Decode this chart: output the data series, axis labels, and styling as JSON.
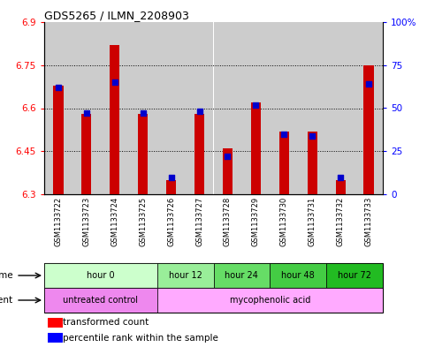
{
  "title": "GDS5265 / ILMN_2208903",
  "samples": [
    "GSM1133722",
    "GSM1133723",
    "GSM1133724",
    "GSM1133725",
    "GSM1133726",
    "GSM1133727",
    "GSM1133728",
    "GSM1133729",
    "GSM1133730",
    "GSM1133731",
    "GSM1133732",
    "GSM1133733"
  ],
  "transformed_count": [
    6.68,
    6.58,
    6.82,
    6.58,
    6.35,
    6.58,
    6.46,
    6.62,
    6.52,
    6.52,
    6.35,
    6.75
  ],
  "percentile_rank": [
    62,
    47,
    65,
    47,
    10,
    48,
    22,
    52,
    35,
    34,
    10,
    64
  ],
  "ylim_left": [
    6.3,
    6.9
  ],
  "ylim_right": [
    0,
    100
  ],
  "yticks_left": [
    6.3,
    6.45,
    6.6,
    6.75,
    6.9
  ],
  "yticks_right": [
    0,
    25,
    50,
    75,
    100
  ],
  "ytick_labels_left": [
    "6.3",
    "6.45",
    "6.6",
    "6.75",
    "6.9"
  ],
  "ytick_labels_right": [
    "0",
    "25",
    "50",
    "75",
    "100%"
  ],
  "bar_color": "#cc0000",
  "dot_color": "#0000cc",
  "bar_bottom": 6.3,
  "time_groups": [
    {
      "label": "hour 0",
      "start": 0,
      "end": 3,
      "color": "#ccffcc"
    },
    {
      "label": "hour 12",
      "start": 4,
      "end": 5,
      "color": "#99ee99"
    },
    {
      "label": "hour 24",
      "start": 6,
      "end": 7,
      "color": "#66dd66"
    },
    {
      "label": "hour 48",
      "start": 8,
      "end": 9,
      "color": "#44cc44"
    },
    {
      "label": "hour 72",
      "start": 10,
      "end": 11,
      "color": "#22bb22"
    }
  ],
  "agent_groups": [
    {
      "label": "untreated control",
      "start": 0,
      "end": 3,
      "color": "#ee88ee"
    },
    {
      "label": "mycophenolic acid",
      "start": 4,
      "end": 11,
      "color": "#ffaaff"
    }
  ],
  "bg_color": "#ffffff",
  "sample_bg": "#cccccc"
}
